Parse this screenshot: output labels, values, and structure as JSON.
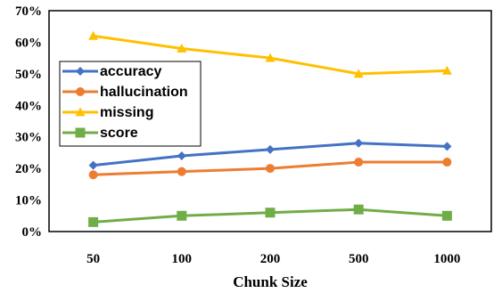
{
  "chart_data": {
    "type": "line",
    "title": "",
    "xlabel": "Chunk Size",
    "ylabel": "",
    "categories": [
      "50",
      "100",
      "200",
      "500",
      "1000"
    ],
    "ylim": [
      0,
      70
    ],
    "yticks": [
      0,
      10,
      20,
      30,
      40,
      50,
      60,
      70
    ],
    "ytick_format": "percent",
    "grid": false,
    "legend_position": "left",
    "series": [
      {
        "name": "accuracy",
        "values": [
          21,
          24,
          26,
          28,
          27
        ],
        "color": "#4472C4",
        "marker": "diamond"
      },
      {
        "name": "hallucination",
        "values": [
          18,
          19,
          20,
          22,
          22
        ],
        "color": "#ED7D31",
        "marker": "circle"
      },
      {
        "name": "missing",
        "values": [
          62,
          58,
          55,
          50,
          51
        ],
        "color": "#FFC000",
        "marker": "triangle"
      },
      {
        "name": "score",
        "values": [
          3,
          5,
          6,
          7,
          5
        ],
        "color": "#70AD47",
        "marker": "square"
      }
    ]
  }
}
